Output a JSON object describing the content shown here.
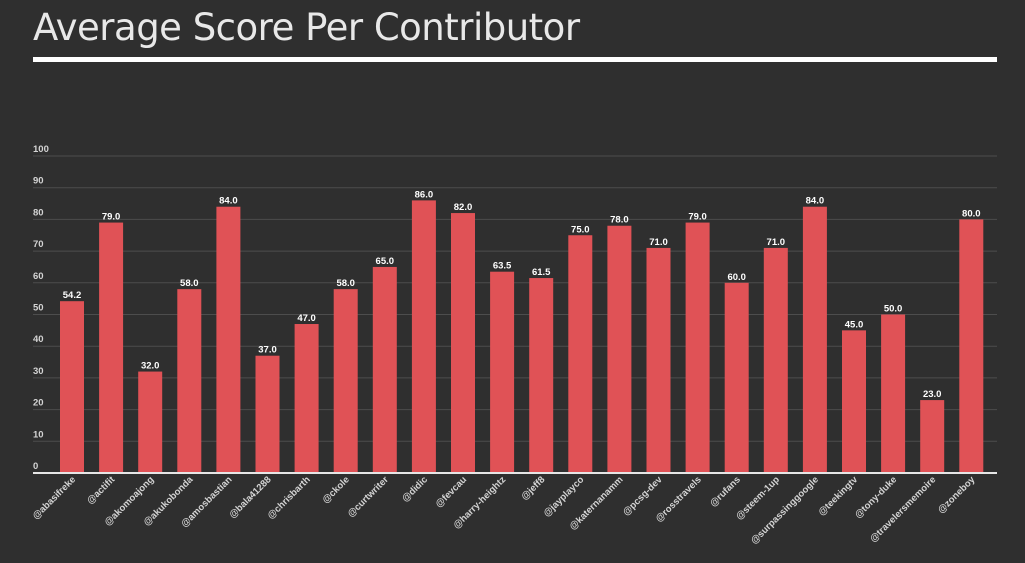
{
  "page": {
    "title": "Average Score Per Contributor"
  },
  "chart_data": {
    "type": "bar",
    "title": "Average Score Per Contributor",
    "xlabel": "",
    "ylabel": "",
    "ylim": [
      0,
      100
    ],
    "yticks": [
      0,
      10,
      20,
      30,
      40,
      50,
      60,
      70,
      80,
      90,
      100
    ],
    "grid": true,
    "bar_color": "#e05256",
    "categories": [
      "@abasifreke",
      "@actifit",
      "@akomoajong",
      "@akukobonda",
      "@amosbastian",
      "@bala41288",
      "@chrisbarth",
      "@ckole",
      "@curtwriter",
      "@didic",
      "@fevcau",
      "@harry-heightz",
      "@jeff8",
      "@jayplayco",
      "@katernanamm",
      "@pcsg-dev",
      "@rosstravels",
      "@rufans",
      "@steem-1up",
      "@surpassinggoogle",
      "@teekingtv",
      "@tony-duke",
      "@travelersmemoire",
      "@zoneboy"
    ],
    "values": [
      54.2,
      79.0,
      32.0,
      58.0,
      84.0,
      37.0,
      47.0,
      58.0,
      65.0,
      86.0,
      82.0,
      63.5,
      61.5,
      75.0,
      78.0,
      71.0,
      79.0,
      60.0,
      71.0,
      84.0,
      45.0,
      50.0,
      23.0,
      80.0
    ],
    "data_labels": [
      "54.2",
      "79.0",
      "32.0",
      "58.0",
      "84.0",
      "37.0",
      "47.0",
      "58.0",
      "65.0",
      "86.0",
      "82.0",
      "63.5",
      "61.5",
      "75.0",
      "78.0",
      "71.0",
      "79.0",
      "60.0",
      "71.0",
      "84.0",
      "45.0",
      "50.0",
      "23.0",
      "80.0"
    ]
  }
}
